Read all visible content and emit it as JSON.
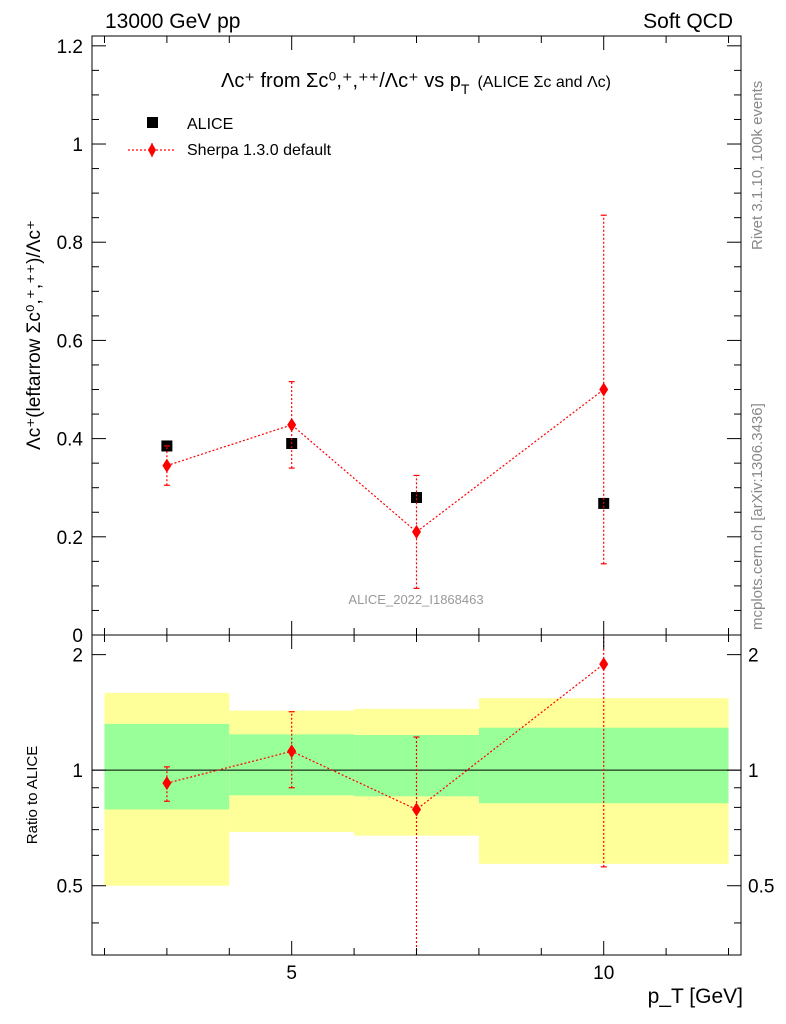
{
  "header": {
    "left": "13000 GeV pp",
    "right": "Soft QCD"
  },
  "side": {
    "rivet": "Rivet 3.1.10,  100k events",
    "source": "mcplots.cern.ch [arXiv:1306.3436]"
  },
  "chart_data": {
    "type": "scatter",
    "title": {
      "lead": "Λc⁺ from Σc⁰,⁺,⁺⁺/Λc⁺ vs p",
      "sub": "T",
      "tail": "(ALICE Σc and Λc)"
    },
    "ylabel": "Λc⁺(leftarrow Σc⁰,⁺,⁺⁺)/Λc⁺",
    "xlabel": "p_T [GeV]",
    "watermark": "ALICE_2022_I1868463",
    "xlim": [
      1.8,
      12.2
    ],
    "ylim": [
      0,
      1.22
    ],
    "x_ticks": [
      5,
      10
    ],
    "y_ticks": [
      0,
      0.2,
      0.4,
      0.6,
      0.8,
      1,
      1.2
    ],
    "y_tick_labels": [
      "0",
      "0.2",
      "0.4",
      "0.6",
      "0.8",
      "1",
      "1.2"
    ],
    "legend": {
      "placement": "top-left",
      "entries": [
        "ALICE",
        "Sherpa 1.3.0 default"
      ]
    },
    "series": [
      {
        "name": "ALICE",
        "color": "#000000",
        "marker": "square",
        "x": [
          3,
          5,
          7,
          10
        ],
        "y": [
          0.385,
          0.39,
          0.28,
          0.268
        ],
        "x_low": [
          2,
          4,
          6,
          8
        ],
        "x_high": [
          4,
          6,
          8,
          12
        ]
      },
      {
        "name": "Sherpa 1.3.0 default",
        "color": "#ff0000",
        "marker": "diamond",
        "line": "dotted",
        "x": [
          3,
          5,
          7,
          10
        ],
        "y": [
          0.345,
          0.428,
          0.21,
          0.5
        ],
        "y_low": [
          0.305,
          0.34,
          0.095,
          0.145
        ],
        "y_high": [
          0.385,
          0.516,
          0.325,
          0.855
        ]
      }
    ],
    "ratio": {
      "ylabel": "Ratio to ALICE",
      "ylim": [
        0.33,
        2.25
      ],
      "y_ticks": [
        0.5,
        1,
        2
      ],
      "y_tick_labels": [
        "0.5",
        "1",
        "2"
      ],
      "bands": [
        {
          "x_low": 2,
          "x_high": 4,
          "green": [
            0.79,
            1.32
          ],
          "yellow": [
            0.5,
            1.59
          ]
        },
        {
          "x_low": 4,
          "x_high": 6,
          "green": [
            0.86,
            1.24
          ],
          "yellow": [
            0.69,
            1.43
          ]
        },
        {
          "x_low": 6,
          "x_high": 8,
          "green": [
            0.855,
            1.235
          ],
          "yellow": [
            0.675,
            1.445
          ]
        },
        {
          "x_low": 8,
          "x_high": 12,
          "green": [
            0.82,
            1.29
          ],
          "yellow": [
            0.57,
            1.54
          ]
        }
      ],
      "band_colors": {
        "green": "#99ff99",
        "yellow": "#ffff99"
      },
      "mc": {
        "x": [
          3,
          5,
          7,
          10
        ],
        "y": [
          0.925,
          1.12,
          0.79,
          1.89
        ],
        "y_low": [
          0.83,
          0.9,
          0.33,
          0.56
        ],
        "y_high": [
          1.02,
          1.42,
          1.22,
          2.6
        ]
      }
    }
  }
}
